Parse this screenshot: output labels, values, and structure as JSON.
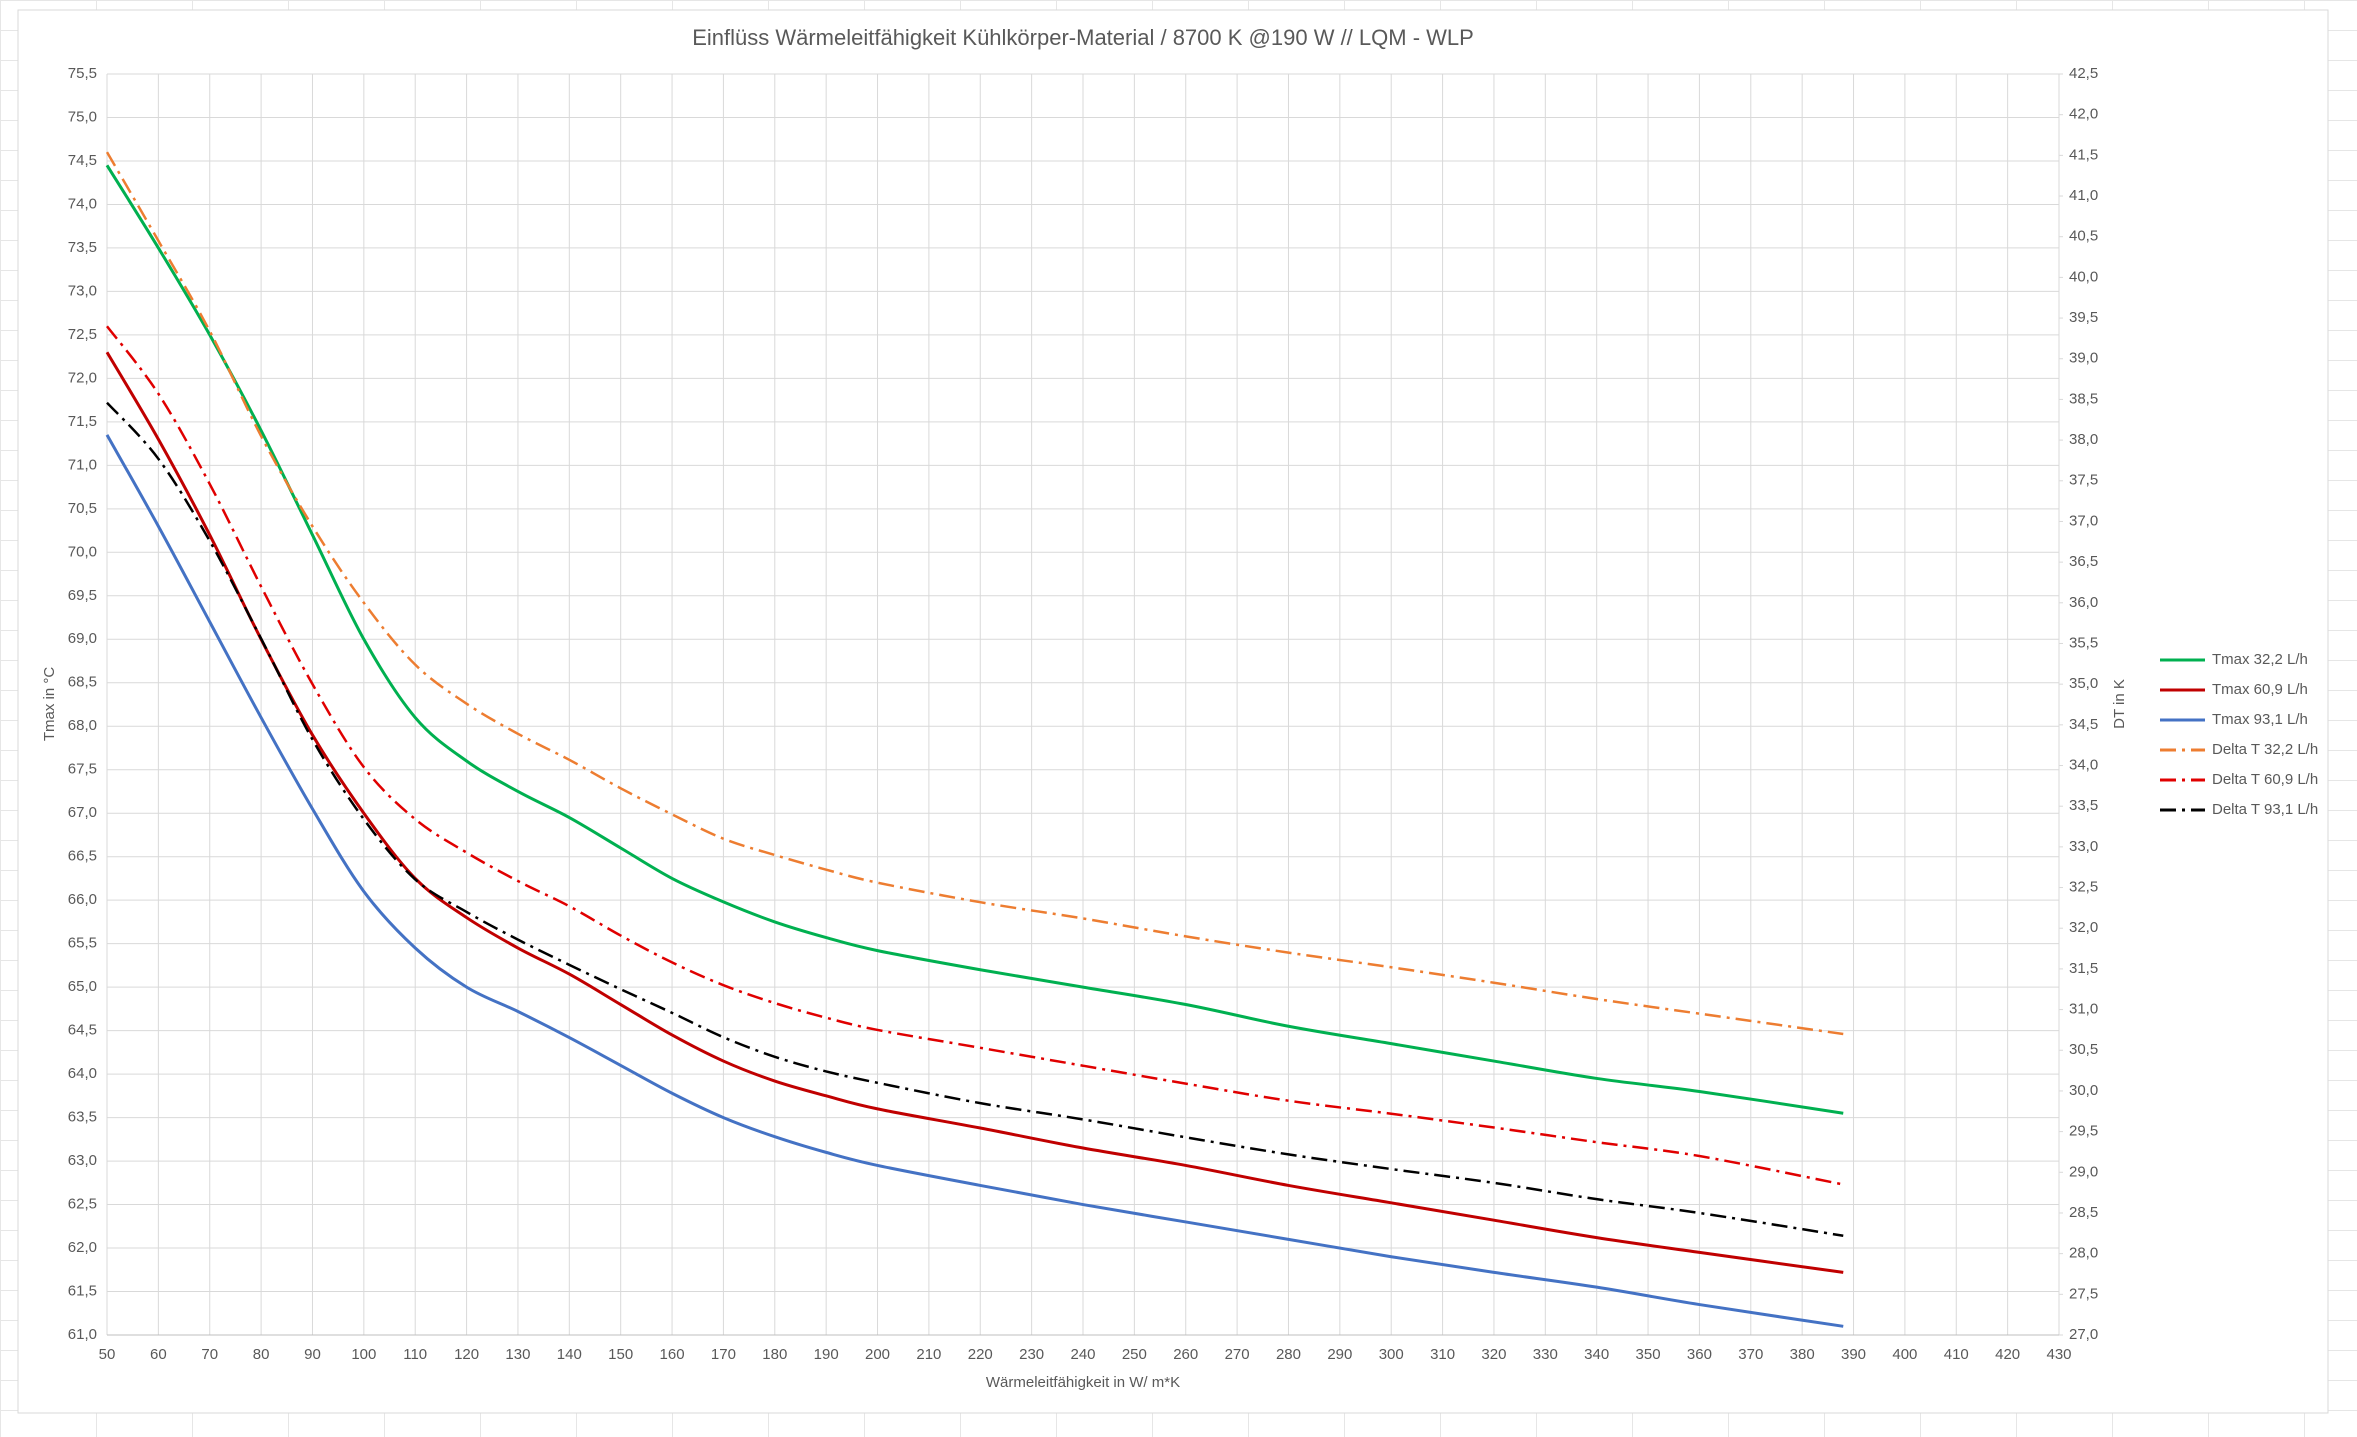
{
  "chart_data": {
    "type": "line",
    "title": "Einflüss Wärmeleitfähigkeit Kühlkörper-Material / 8700 K @190 W // LQM - WLP",
    "x_label": "Wärmeleitfähigkeit in W/ m*K",
    "y_label": "Tmax in °C",
    "y2_label": "DT in K",
    "x": [
      50,
      60,
      70,
      80,
      90,
      100,
      110,
      120,
      130,
      140,
      150,
      160,
      170,
      180,
      190,
      200,
      220,
      240,
      260,
      280,
      300,
      320,
      340,
      360,
      388
    ],
    "xlim": [
      50,
      430
    ],
    "xticks": [
      50,
      60,
      70,
      80,
      90,
      100,
      110,
      120,
      130,
      140,
      150,
      160,
      170,
      180,
      190,
      200,
      210,
      220,
      230,
      240,
      250,
      260,
      270,
      280,
      290,
      300,
      310,
      320,
      330,
      340,
      350,
      360,
      370,
      380,
      390,
      400,
      410,
      420,
      430
    ],
    "ylim": [
      61,
      75.5
    ],
    "yticks": [
      {
        "value": 61,
        "label": "61,0"
      },
      {
        "value": 61.5,
        "label": "61,5"
      },
      {
        "value": 62,
        "label": "62,0"
      },
      {
        "value": 62.5,
        "label": "62,5"
      },
      {
        "value": 63,
        "label": "63,0"
      },
      {
        "value": 63.5,
        "label": "63,5"
      },
      {
        "value": 64,
        "label": "64,0"
      },
      {
        "value": 64.5,
        "label": "64,5"
      },
      {
        "value": 65,
        "label": "65,0"
      },
      {
        "value": 65.5,
        "label": "65,5"
      },
      {
        "value": 66,
        "label": "66,0"
      },
      {
        "value": 66.5,
        "label": "66,5"
      },
      {
        "value": 67,
        "label": "67,0"
      },
      {
        "value": 67.5,
        "label": "67,5"
      },
      {
        "value": 68,
        "label": "68,0"
      },
      {
        "value": 68.5,
        "label": "68,5"
      },
      {
        "value": 69,
        "label": "69,0"
      },
      {
        "value": 69.5,
        "label": "69,5"
      },
      {
        "value": 70,
        "label": "70,0"
      },
      {
        "value": 70.5,
        "label": "70,5"
      },
      {
        "value": 71,
        "label": "71,0"
      },
      {
        "value": 71.5,
        "label": "71,5"
      },
      {
        "value": 72,
        "label": "72,0"
      },
      {
        "value": 72.5,
        "label": "72,5"
      },
      {
        "value": 73,
        "label": "73,0"
      },
      {
        "value": 73.5,
        "label": "73,5"
      },
      {
        "value": 74,
        "label": "74,0"
      },
      {
        "value": 74.5,
        "label": "74,5"
      },
      {
        "value": 75,
        "label": "75,0"
      },
      {
        "value": 75.5,
        "label": "75,5"
      }
    ],
    "y2lim": [
      27,
      42.5
    ],
    "y2ticks": [
      {
        "value": 27,
        "label": "27,0"
      },
      {
        "value": 27.5,
        "label": "27,5"
      },
      {
        "value": 28,
        "label": "28,0"
      },
      {
        "value": 28.5,
        "label": "28,5"
      },
      {
        "value": 29,
        "label": "29,0"
      },
      {
        "value": 29.5,
        "label": "29,5"
      },
      {
        "value": 30,
        "label": "30,0"
      },
      {
        "value": 30.5,
        "label": "30,5"
      },
      {
        "value": 31,
        "label": "31,0"
      },
      {
        "value": 31.5,
        "label": "31,5"
      },
      {
        "value": 32,
        "label": "32,0"
      },
      {
        "value": 32.5,
        "label": "32,5"
      },
      {
        "value": 33,
        "label": "33,0"
      },
      {
        "value": 33.5,
        "label": "33,5"
      },
      {
        "value": 34,
        "label": "34,0"
      },
      {
        "value": 34.5,
        "label": "34,5"
      },
      {
        "value": 35,
        "label": "35,0"
      },
      {
        "value": 35.5,
        "label": "35,5"
      },
      {
        "value": 36,
        "label": "36,0"
      },
      {
        "value": 36.5,
        "label": "36,5"
      },
      {
        "value": 37,
        "label": "37,0"
      },
      {
        "value": 37.5,
        "label": "37,5"
      },
      {
        "value": 38,
        "label": "38,0"
      },
      {
        "value": 38.5,
        "label": "38,5"
      },
      {
        "value": 39,
        "label": "39,0"
      },
      {
        "value": 39.5,
        "label": "39,5"
      },
      {
        "value": 40,
        "label": "40,0"
      },
      {
        "value": 40.5,
        "label": "40,5"
      },
      {
        "value": 41,
        "label": "41,0"
      },
      {
        "value": 41.5,
        "label": "41,5"
      },
      {
        "value": 42,
        "label": "42,0"
      },
      {
        "value": 42.5,
        "label": "42,5"
      }
    ],
    "grid": true,
    "legend": "right",
    "series": [
      {
        "name": "Tmax 32,2 L/h",
        "color": "#00b050",
        "line_style": "solid",
        "values": [
          74.45,
          73.5,
          72.5,
          71.4,
          70.2,
          69.0,
          68.1,
          67.6,
          67.25,
          66.95,
          66.6,
          66.25,
          65.98,
          65.75,
          65.57,
          65.42,
          65.2,
          65.0,
          64.8,
          64.55,
          64.35,
          64.15,
          63.95,
          63.8,
          63.55
        ]
      },
      {
        "name": "Tmax 60,9 L/h",
        "color": "#c00000",
        "line_style": "solid",
        "values": [
          72.3,
          71.3,
          70.2,
          69.0,
          67.9,
          67.0,
          66.25,
          65.8,
          65.45,
          65.15,
          64.8,
          64.45,
          64.15,
          63.92,
          63.75,
          63.6,
          63.38,
          63.15,
          62.95,
          62.72,
          62.52,
          62.32,
          62.12,
          61.95,
          61.72
        ]
      },
      {
        "name": "Tmax 93,1 L/h",
        "color": "#4472c4",
        "line_style": "solid",
        "values": [
          71.35,
          70.3,
          69.2,
          68.1,
          67.05,
          66.1,
          65.45,
          65.0,
          64.72,
          64.42,
          64.1,
          63.78,
          63.5,
          63.28,
          63.1,
          62.95,
          62.72,
          62.5,
          62.3,
          62.1,
          61.9,
          61.72,
          61.55,
          61.35,
          61.1
        ]
      },
      {
        "name": "Delta T 32,2 L/h",
        "color": "#ed7d31",
        "line_style": "dash-dot",
        "axis": "y2",
        "values": [
          41.54,
          40.45,
          39.34,
          38.05,
          36.94,
          36.0,
          35.24,
          34.76,
          34.39,
          34.07,
          33.72,
          33.4,
          33.1,
          32.9,
          32.72,
          32.56,
          32.32,
          32.12,
          31.9,
          31.7,
          31.52,
          31.33,
          31.13,
          30.95,
          30.7
        ]
      },
      {
        "name": "Delta T 60,9 L/h",
        "color": "#e00000",
        "line_style": "dash-dot",
        "axis": "y2",
        "values": [
          39.4,
          38.57,
          37.46,
          36.2,
          35.0,
          33.98,
          33.34,
          32.93,
          32.58,
          32.27,
          31.91,
          31.58,
          31.3,
          31.08,
          30.9,
          30.75,
          30.53,
          30.31,
          30.09,
          29.88,
          29.72,
          29.55,
          29.37,
          29.2,
          28.85
        ]
      },
      {
        "name": "Delta T 93,1 L/h",
        "color": "#000000",
        "line_style": "dash-dot",
        "axis": "y2",
        "values": [
          38.46,
          37.77,
          36.76,
          35.56,
          34.32,
          33.34,
          32.6,
          32.2,
          31.86,
          31.55,
          31.25,
          30.96,
          30.66,
          30.42,
          30.24,
          30.1,
          29.85,
          29.65,
          29.43,
          29.22,
          29.04,
          28.87,
          28.67,
          28.5,
          28.22
        ]
      }
    ]
  }
}
